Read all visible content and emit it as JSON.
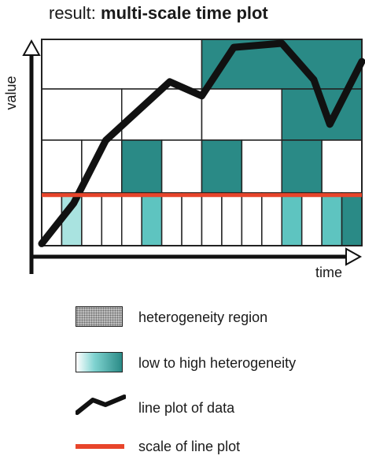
{
  "title": {
    "prefix": "result:",
    "bold": "multi-scale time plot"
  },
  "axes": {
    "y_label": "value",
    "x_label": "time"
  },
  "colors": {
    "high_heterogeneity": "#2a8a86",
    "medium_heterogeneity": "#5ec4c0",
    "low_heterogeneity": "#a9e3e0",
    "no_heterogeneity": "#ffffff",
    "data_line": "#111111",
    "scale_line": "#e8452b"
  },
  "scale_levels": [
    {
      "divisions": 2,
      "heterogeneity": [
        0,
        3
      ]
    },
    {
      "divisions": 4,
      "heterogeneity": [
        0,
        0,
        0,
        3
      ]
    },
    {
      "divisions": 8,
      "heterogeneity": [
        0,
        0,
        3,
        0,
        3,
        0,
        3,
        0
      ]
    },
    {
      "divisions": 16,
      "heterogeneity": [
        0,
        1,
        0,
        0,
        0,
        2,
        0,
        0,
        0,
        0,
        0,
        0,
        2,
        0,
        2,
        3
      ]
    }
  ],
  "line_data": {
    "time": [
      0,
      0.1,
      0.2,
      0.4,
      0.5,
      0.6,
      0.75,
      0.85,
      0.9,
      1.0
    ],
    "value": [
      0.01,
      0.21,
      0.52,
      0.81,
      0.74,
      0.98,
      1.0,
      0.82,
      0.6,
      0.91
    ]
  },
  "scale_line_value": 0.25,
  "legend": [
    {
      "icon": "heterogeneity-region-swatch",
      "label": "heterogeneity region"
    },
    {
      "icon": "heterogeneity-gradient-swatch",
      "label": "low to high heterogeneity"
    },
    {
      "icon": "line-plot-icon",
      "label": "line plot of data"
    },
    {
      "icon": "scale-line-icon",
      "label": "scale of line plot"
    }
  ]
}
